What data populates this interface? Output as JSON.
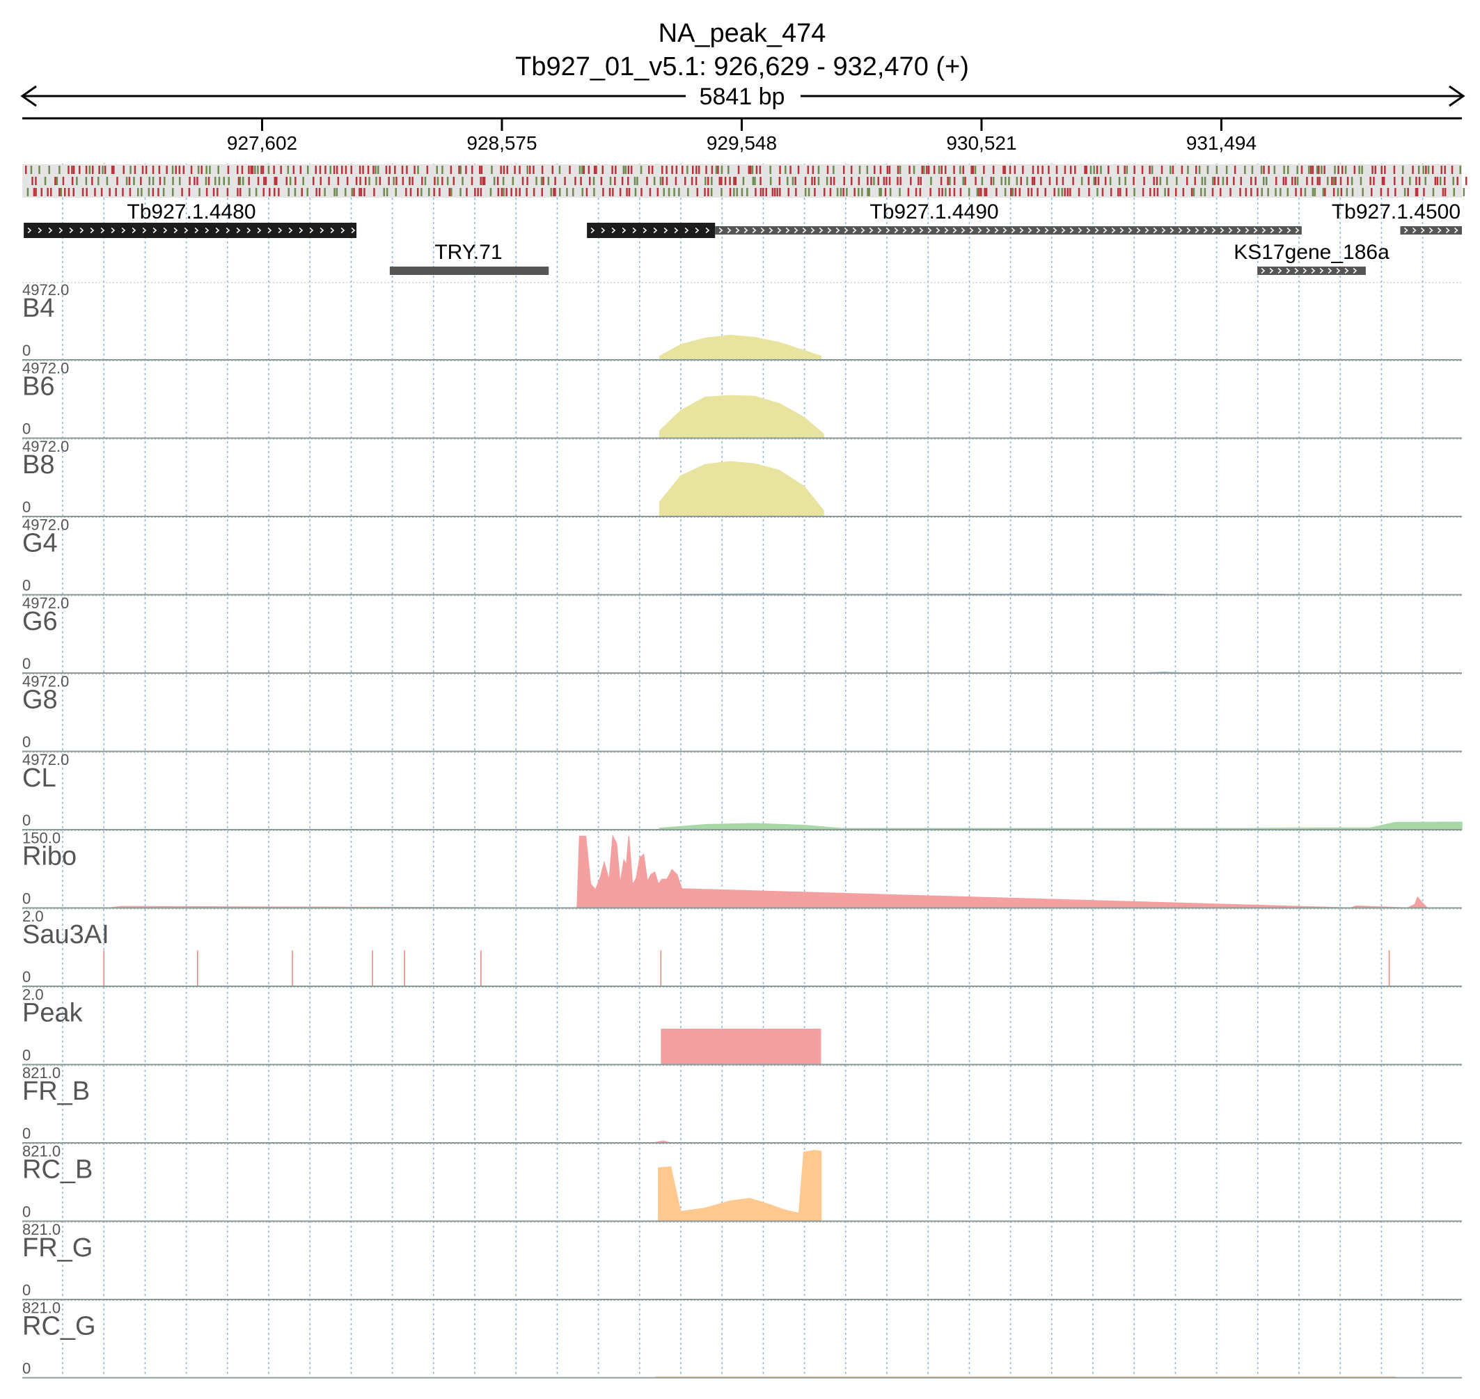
{
  "header": {
    "title": "NA_peak_474",
    "locus": "Tb927_01_v5.1: 926,629 - 932,470 (+)",
    "span_label": "5841 bp"
  },
  "chart_data": {
    "type": "area",
    "genome_range": [
      926629,
      932470
    ],
    "ruler_ticks": [
      {
        "pos": 927602,
        "label": "927,602"
      },
      {
        "pos": 928575,
        "label": "928,575"
      },
      {
        "pos": 929548,
        "label": "929,548"
      },
      {
        "pos": 930521,
        "label": "930,521"
      },
      {
        "pos": 931494,
        "label": "931,494"
      }
    ],
    "gene_track": {
      "genes": [
        {
          "name": "Tb927.1.4480",
          "segments": [
            {
              "start": 926635,
              "end": 927985,
              "style": "thick"
            }
          ],
          "row": 0
        },
        {
          "name": "Tb927.1.4490",
          "segments": [
            {
              "start": 928920,
              "end": 929440,
              "style": "thick"
            },
            {
              "start": 929440,
              "end": 931820,
              "style": "thin"
            }
          ],
          "row": 0
        },
        {
          "name": "Tb927.1.4500",
          "segments": [
            {
              "start": 932220,
              "end": 932470,
              "style": "thin"
            }
          ],
          "row": 0
        },
        {
          "name": "TRY.71",
          "segments": [
            {
              "start": 928120,
              "end": 928765,
              "style": "bar"
            }
          ],
          "row": 1
        },
        {
          "name": "KS17gene_186a",
          "segments": [
            {
              "start": 931640,
              "end": 932080,
              "style": "thin"
            }
          ],
          "row": 2
        }
      ]
    },
    "tracks": [
      {
        "name": "B4",
        "max_label": "4972.0",
        "min_label": "0",
        "ymax": 4972,
        "color": "#e8e4a0",
        "x": [
          929215,
          929300,
          929400,
          929500,
          929600,
          929700,
          929800,
          929870
        ],
        "y": [
          250,
          1050,
          1500,
          1700,
          1550,
          1200,
          650,
          250
        ]
      },
      {
        "name": "B6",
        "max_label": "4972.0",
        "min_label": "0",
        "ymax": 4972,
        "color": "#e8e4a0",
        "x": [
          929215,
          929300,
          929400,
          929500,
          929600,
          929700,
          929800,
          929880
        ],
        "y": [
          500,
          1900,
          2850,
          2950,
          2900,
          2400,
          1450,
          300
        ]
      },
      {
        "name": "B8",
        "max_label": "4972.0",
        "min_label": "0",
        "ymax": 4972,
        "color": "#e8e4a0",
        "x": [
          929215,
          929300,
          929400,
          929500,
          929600,
          929700,
          929800,
          929880
        ],
        "y": [
          1000,
          2800,
          3600,
          3800,
          3650,
          3200,
          2100,
          400
        ]
      },
      {
        "name": "G4",
        "max_label": "4972.0",
        "min_label": "0",
        "ymax": 4972,
        "color": "#9ab8d0",
        "x": [
          929215,
          929600,
          929900,
          931200,
          931300
        ],
        "y": [
          20,
          60,
          20,
          60,
          20
        ]
      },
      {
        "name": "G6",
        "max_label": "4972.0",
        "min_label": "0",
        "ymax": 4972,
        "color": "#9ab8d0",
        "x": [
          931180,
          931260,
          931340
        ],
        "y": [
          10,
          60,
          10
        ]
      },
      {
        "name": "G8",
        "max_label": "4972.0",
        "min_label": "0",
        "ymax": 4972,
        "color": "#9ab8d0",
        "x": [
          929215,
          929900
        ],
        "y": [
          10,
          10
        ]
      },
      {
        "name": "CL",
        "max_label": "4972.0",
        "min_label": "0",
        "ymax": 4972,
        "color": "#a8d8a8",
        "x": [
          929215,
          929400,
          929600,
          929800,
          929950,
          931500,
          932100,
          932200,
          932470
        ],
        "y": [
          100,
          350,
          420,
          300,
          80,
          80,
          120,
          500,
          520
        ]
      },
      {
        "name": "Ribo",
        "max_label": "150.0",
        "min_label": "0",
        "ymax": 150,
        "color": "#f4a0a0",
        "x": [
          926980,
          927030,
          928880,
          928890,
          928915,
          928935,
          928955,
          928975,
          928990,
          929010,
          929025,
          929040,
          929055,
          929070,
          929080,
          929090,
          929105,
          929120,
          929135,
          929150,
          929165,
          929180,
          929195,
          929210,
          929225,
          929245,
          929265,
          929285,
          929305,
          932020,
          932040,
          932250,
          932280,
          932290,
          932310,
          932330
        ],
        "y": [
          0,
          3,
          0,
          150,
          150,
          50,
          38,
          65,
          95,
          58,
          150,
          135,
          50,
          100,
          90,
          150,
          48,
          62,
          105,
          112,
          55,
          70,
          75,
          50,
          60,
          60,
          80,
          70,
          40,
          0,
          4,
          0,
          8,
          22,
          10,
          0
        ]
      },
      {
        "name": "Sau3AI",
        "max_label": "2.0",
        "min_label": "0",
        "ymax": 2,
        "color": "#f4a0a0",
        "sites": [
          926960,
          927340,
          927725,
          928050,
          928180,
          928490,
          929220,
          932175
        ]
      },
      {
        "name": "Peak",
        "max_label": "2.0",
        "min_label": "0",
        "ymax": 2,
        "color": "#f4a0a0",
        "regions": [
          {
            "start": 929220,
            "end": 929870,
            "value": 1
          }
        ]
      },
      {
        "name": "FR_B",
        "max_label": "821.0",
        "min_label": "0",
        "ymax": 821,
        "color": "#f4a0a0",
        "x": [
          929190,
          929230,
          929260
        ],
        "y": [
          0,
          20,
          0
        ]
      },
      {
        "name": "RC_B",
        "max_label": "821.0",
        "min_label": "0",
        "ymax": 821,
        "color": "#ffc890",
        "x": [
          929210,
          929260,
          929300,
          929400,
          929500,
          929580,
          929650,
          929720,
          929780,
          929800,
          929840,
          929870
        ],
        "y": [
          610,
          620,
          110,
          150,
          230,
          260,
          200,
          130,
          90,
          790,
          810,
          800
        ]
      },
      {
        "name": "FR_G",
        "max_label": "821.0",
        "min_label": "0",
        "ymax": 821,
        "color": "#f4a0a0",
        "x": [
          929220,
          929250
        ],
        "y": [
          0,
          0
        ]
      },
      {
        "name": "RC_G",
        "max_label": "821.0",
        "min_label": "0",
        "ymax": 821,
        "color": "#ffc890",
        "x": [
          929200,
          929260,
          932100,
          932200
        ],
        "y": [
          10,
          10,
          10,
          10
        ]
      }
    ]
  }
}
